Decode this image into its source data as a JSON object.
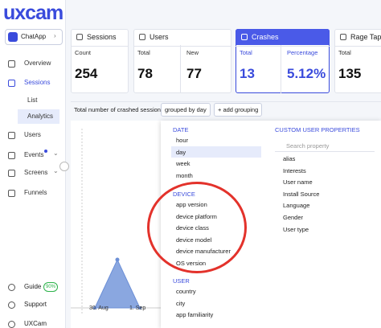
{
  "logo": "uxcam",
  "app_selector": "ChatApp",
  "nav": [
    "Overview",
    "Sessions",
    "List",
    "Analytics",
    "Users",
    "Events",
    "Screens",
    "Funnels"
  ],
  "footer_nav": {
    "guide": "Guide",
    "guide_progress": "90%",
    "support": "Support",
    "account": "UXCam"
  },
  "cards": [
    {
      "title": "Sessions",
      "metrics": [
        {
          "label": "Count",
          "value": "254"
        }
      ]
    },
    {
      "title": "Users",
      "metrics": [
        {
          "label": "Total",
          "value": "78"
        },
        {
          "label": "New",
          "value": "77"
        }
      ]
    },
    {
      "title": "Crashes",
      "metrics": [
        {
          "label": "Total",
          "value": "13"
        },
        {
          "label": "Percentage",
          "value": "5.12%"
        }
      ]
    },
    {
      "title": "Rage Taps",
      "metrics": [
        {
          "label": "Total",
          "value": "135"
        }
      ]
    }
  ],
  "toolbar": {
    "label": "Total number of crashed sessions",
    "grouping": "grouped by day",
    "add_grouping": "+ add grouping"
  },
  "chart": {
    "x_labels": [
      "30. Aug",
      "1. Sep"
    ]
  },
  "dropdown": {
    "sections": [
      {
        "title": "DATE",
        "items": [
          "hour",
          "day",
          "week",
          "month"
        ]
      },
      {
        "title": "DEVICE",
        "items": [
          "app version",
          "device platform",
          "device class",
          "device model",
          "device manufacturer",
          "OS version"
        ]
      },
      {
        "title": "USER",
        "items": [
          "country",
          "city",
          "app familiarity"
        ]
      }
    ],
    "custom": {
      "title": "CUSTOM USER PROPERTIES",
      "search_placeholder": "Search property",
      "items": [
        "alias",
        "Interests",
        "User name",
        "Install Source",
        "Language",
        "Gender",
        "User type"
      ]
    }
  }
}
